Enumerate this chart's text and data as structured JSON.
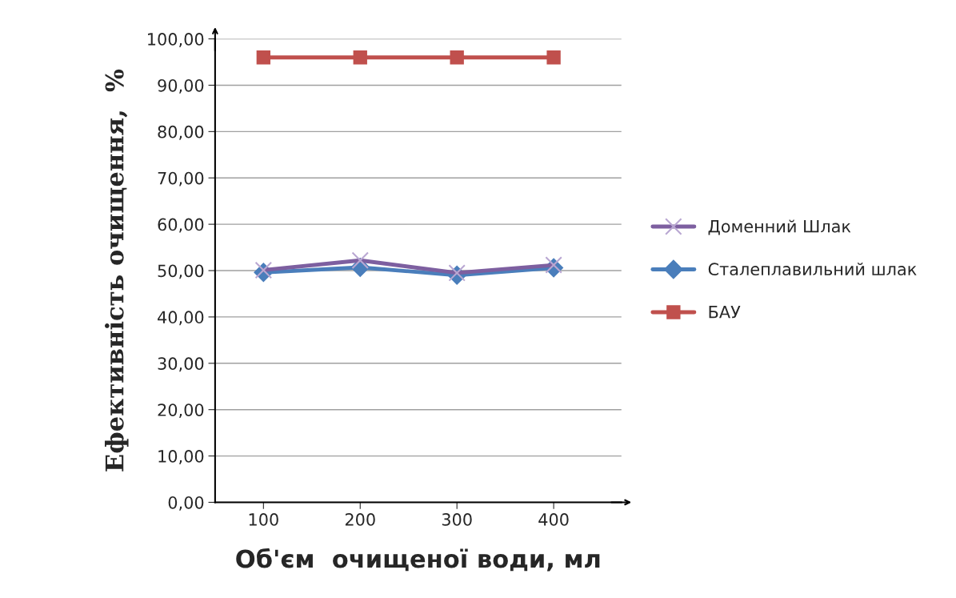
{
  "chart_data": {
    "type": "line",
    "xlabel": "Об'єм  очищеної води, мл",
    "ylabel": "Ефективність очищення,  %",
    "categories": [
      "100",
      "200",
      "300",
      "400"
    ],
    "series": [
      {
        "name": "Доменний Шлак",
        "color": "#7d5fa0",
        "marker": "cross",
        "values": [
          50.1,
          52.2,
          49.5,
          51.2
        ]
      },
      {
        "name": "Сталеплавильний шлак",
        "color": "#4a7ebb",
        "marker": "diamond",
        "values": [
          49.6,
          50.7,
          49.0,
          50.6
        ]
      },
      {
        "name": "БАУ",
        "color": "#c0504d",
        "marker": "square",
        "values": [
          96,
          96,
          96,
          96
        ]
      }
    ],
    "ylim": [
      0,
      100
    ],
    "yticks": [
      {
        "value": 0,
        "label": "0,00"
      },
      {
        "value": 10,
        "label": "10,00"
      },
      {
        "value": 20,
        "label": "20,00"
      },
      {
        "value": 30,
        "label": "30,00"
      },
      {
        "value": 40,
        "label": "40,00"
      },
      {
        "value": 50,
        "label": "50,00"
      },
      {
        "value": 60,
        "label": "60,00"
      },
      {
        "value": 70,
        "label": "70,00"
      },
      {
        "value": 80,
        "label": "80,00"
      },
      {
        "value": 90,
        "label": "90,00"
      },
      {
        "value": 100,
        "label": "100,00"
      }
    ],
    "grid": "y",
    "legend": "right"
  }
}
